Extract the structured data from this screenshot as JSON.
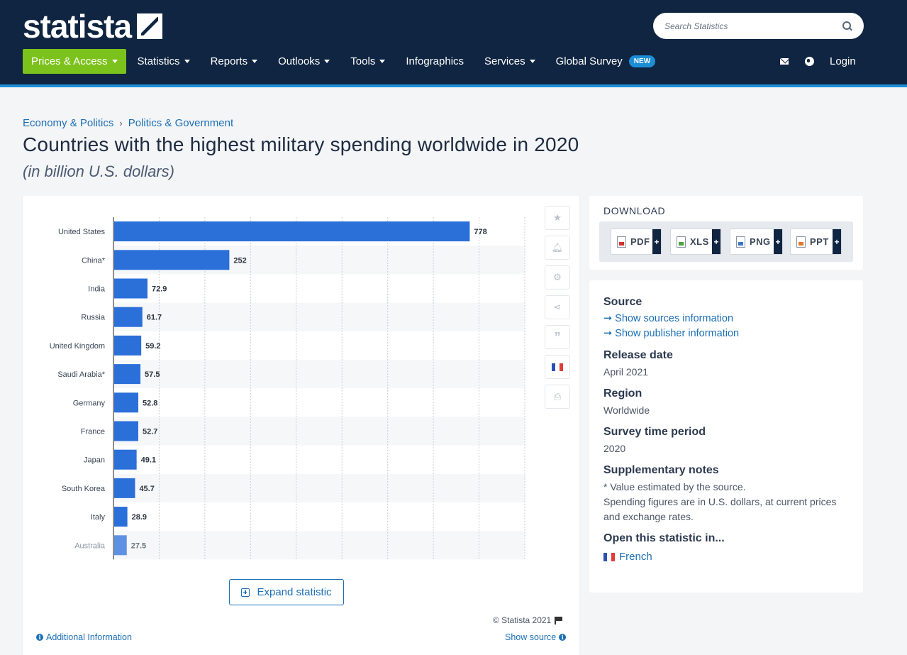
{
  "header": {
    "logo_text": "statista",
    "search_placeholder": "Search Statistics",
    "nav": [
      {
        "label": "Prices & Access",
        "caret": true,
        "primary": true
      },
      {
        "label": "Statistics",
        "caret": true
      },
      {
        "label": "Reports",
        "caret": true
      },
      {
        "label": "Outlooks",
        "caret": true
      },
      {
        "label": "Tools",
        "caret": true
      },
      {
        "label": "Infographics",
        "caret": false
      },
      {
        "label": "Services",
        "caret": true
      },
      {
        "label": "Global Survey",
        "caret": false,
        "badge": "NEW"
      }
    ],
    "login_label": "Login",
    "colors": {
      "bar": "#0f2541",
      "accent_line": "#1c8ed6",
      "primary_button": "#7cc21c"
    }
  },
  "breadcrumb": {
    "items": [
      "Economy & Politics",
      "Politics & Government"
    ],
    "separator": "›"
  },
  "page": {
    "title": "Countries with the highest military spending worldwide in 2020",
    "subtitle": "(in billion U.S. dollars)"
  },
  "chart_data": {
    "type": "bar",
    "orientation": "horizontal",
    "categories": [
      "United States",
      "China*",
      "India",
      "Russia",
      "United Kingdom",
      "Saudi Arabia*",
      "Germany",
      "France",
      "Japan",
      "South Korea",
      "Italy",
      "Australia"
    ],
    "values": [
      778,
      252,
      72.9,
      61.7,
      59.2,
      57.5,
      52.8,
      52.7,
      49.1,
      45.7,
      28.9,
      27.5
    ],
    "value_labels": [
      "778",
      "252",
      "72.9",
      "61.7",
      "59.2",
      "57.5",
      "52.8",
      "52.7",
      "49.1",
      "45.7",
      "28.9",
      "27.5"
    ],
    "xlim": [
      0,
      900
    ],
    "grid": true,
    "bar_color": "#2b6fd9",
    "title": "",
    "xlabel": "",
    "ylabel": ""
  },
  "chart_tools": [
    "star-icon",
    "bell-icon",
    "gear-icon",
    "share-icon",
    "quote-icon",
    "flag-fr-icon",
    "print-icon"
  ],
  "chart_footer": {
    "expand_label": "Expand statistic",
    "copyright": "© Statista 2021",
    "additional_info": "Additional Information",
    "show_source": "Show source"
  },
  "download": {
    "heading": "DOWNLOAD",
    "formats": [
      {
        "label": "PDF",
        "icon": "pdf-file-icon"
      },
      {
        "label": "XLS",
        "icon": "xls-file-icon"
      },
      {
        "label": "PNG",
        "icon": "png-file-icon"
      },
      {
        "label": "PPT",
        "icon": "ppt-file-icon"
      }
    ]
  },
  "info": {
    "source_heading": "Source",
    "source_links": [
      "➞ Show sources information",
      "➞ Show publisher information"
    ],
    "release_heading": "Release date",
    "release_value": "April 2021",
    "region_heading": "Region",
    "region_value": "Worldwide",
    "survey_heading": "Survey time period",
    "survey_value": "2020",
    "notes_heading": "Supplementary notes",
    "notes": [
      "* Value estimated by the source.",
      "Spending figures are in U.S. dollars, at current prices and exchange rates."
    ],
    "open_heading": "Open this statistic in...",
    "open_language": "French"
  }
}
